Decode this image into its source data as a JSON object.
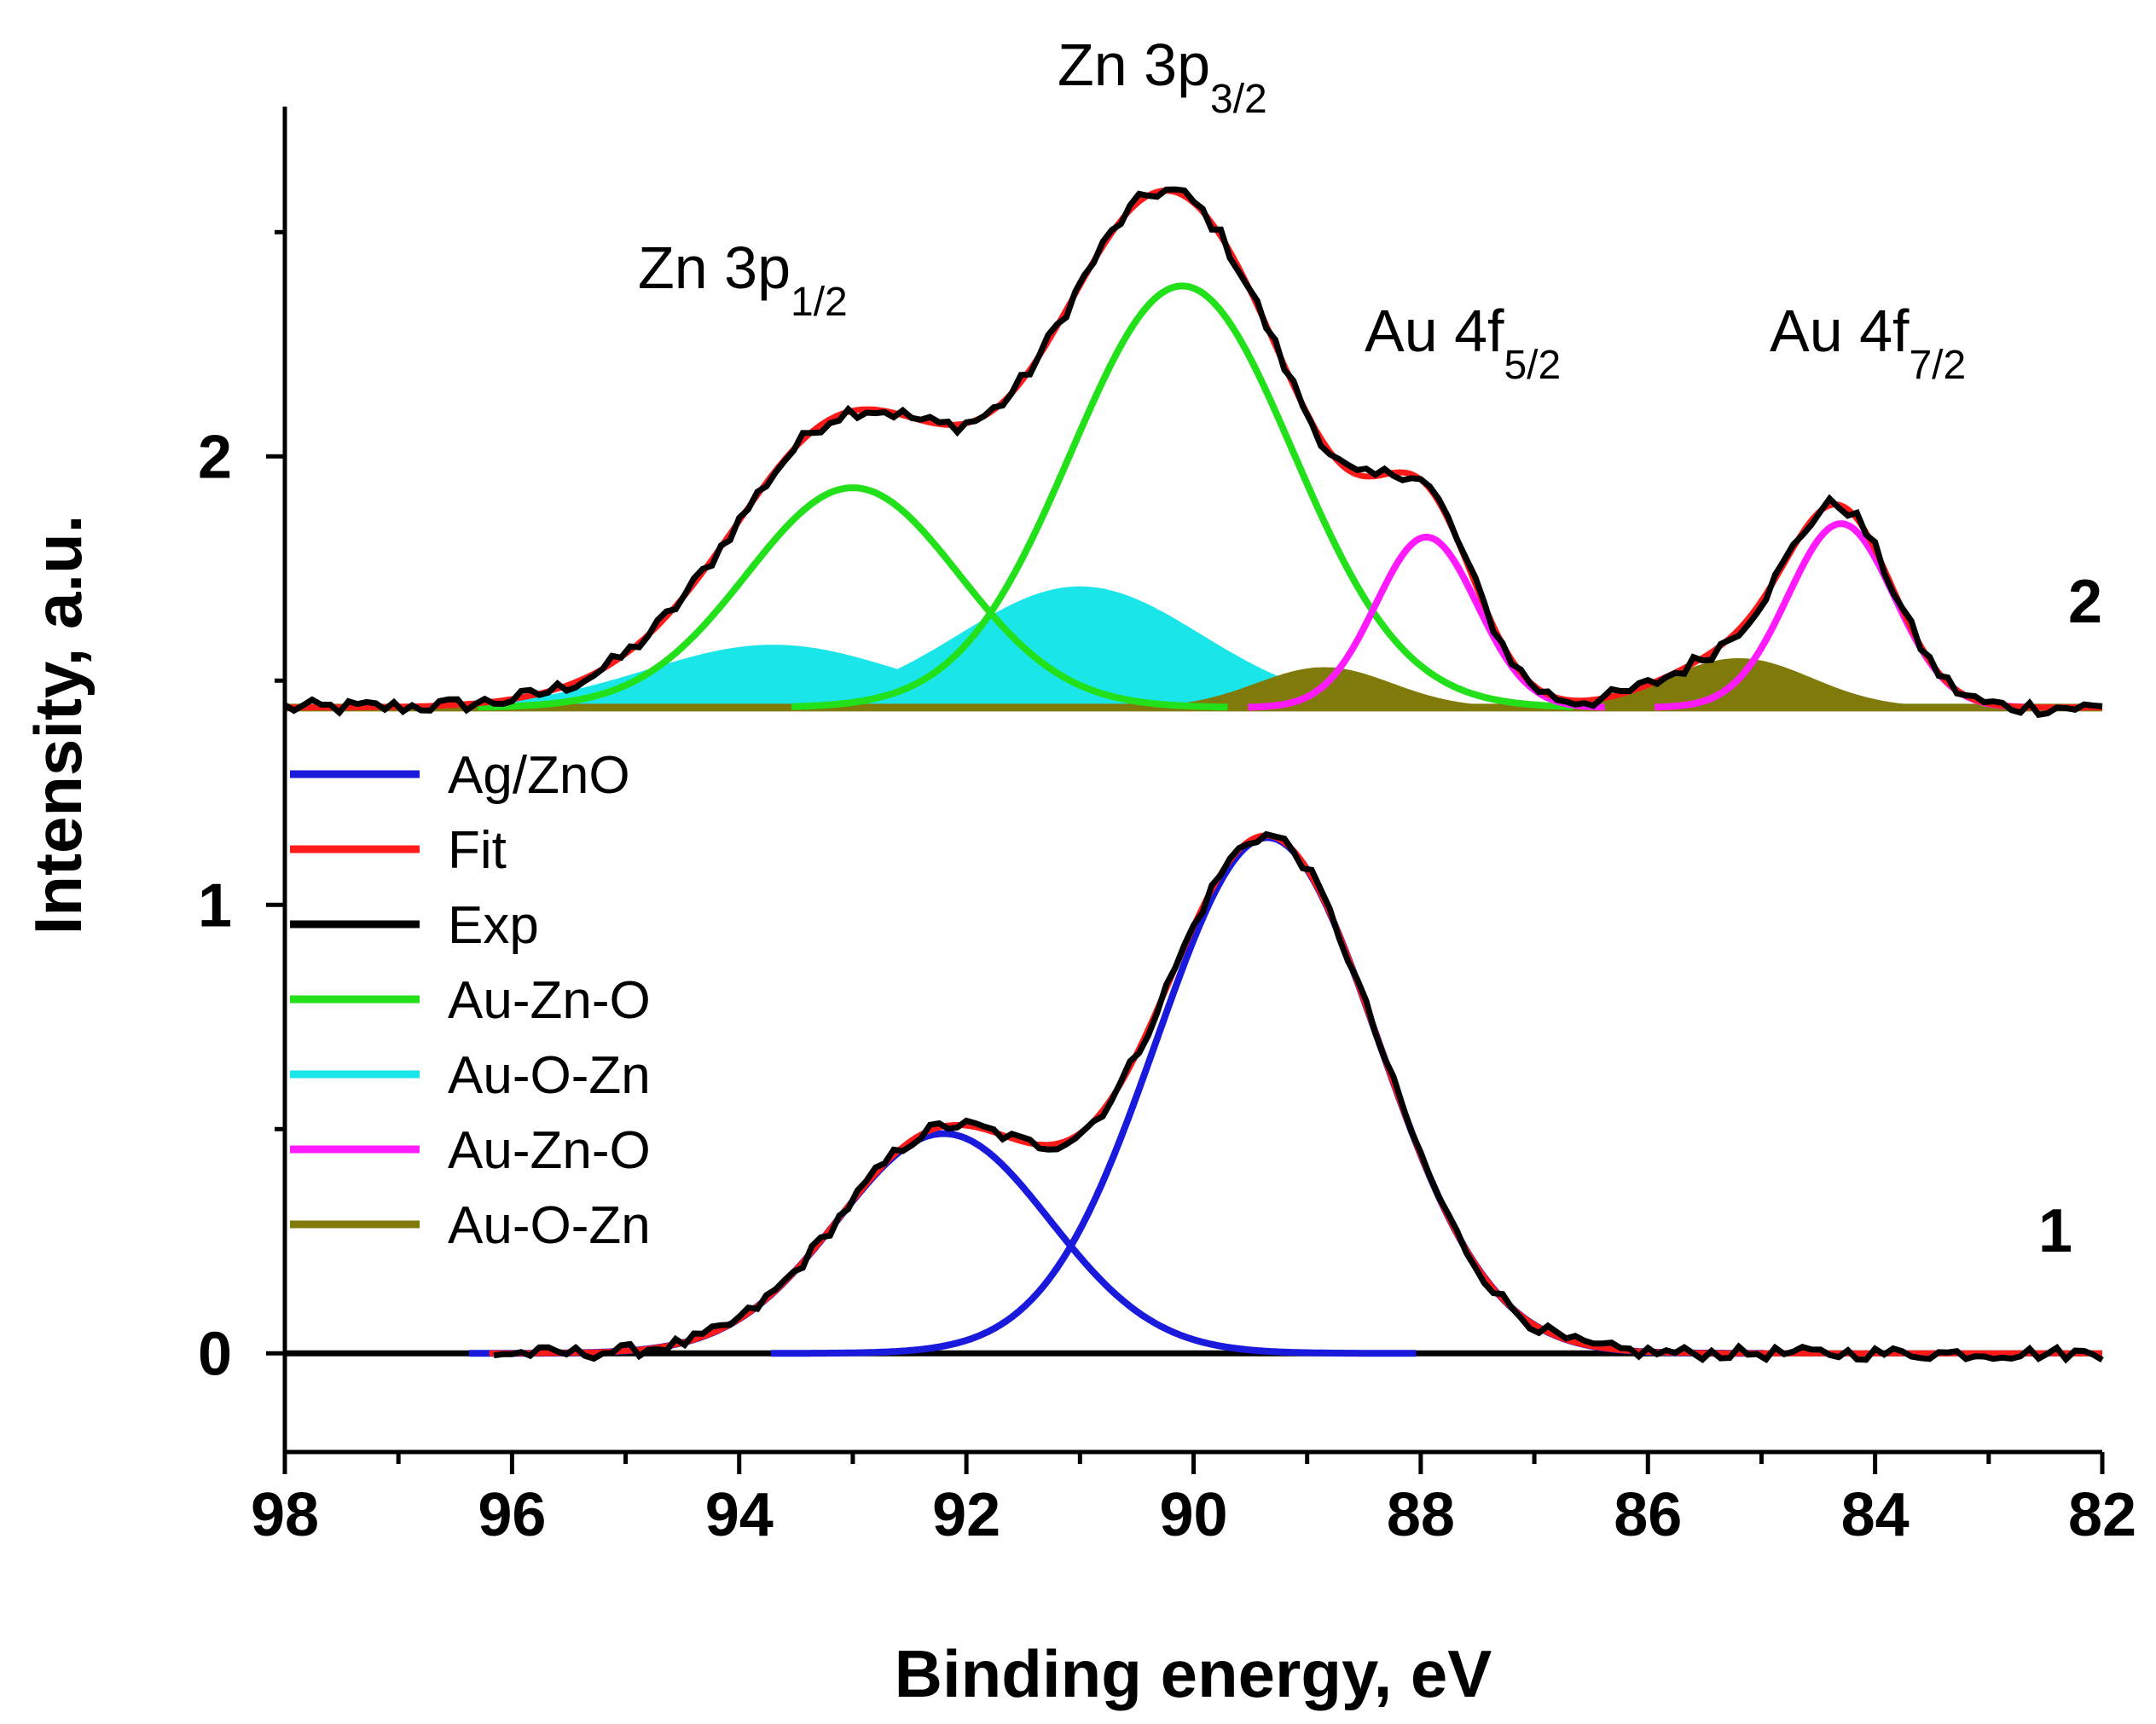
{
  "chart_data": {
    "type": "line",
    "title": "",
    "xlabel": "Binding energy, eV",
    "ylabel": "Intensity, a.u.",
    "xlim": [
      98,
      82
    ],
    "ylim": [
      -0.22,
      2.78
    ],
    "x_ticks": [
      "98",
      "96",
      "94",
      "92",
      "90",
      "88",
      "86",
      "84",
      "82"
    ],
    "y_ticks": [
      "0",
      "1",
      "2"
    ],
    "curve_labels": [
      {
        "text": "2",
        "offset": 1.44
      },
      {
        "text": "1",
        "offset": 0.0
      }
    ],
    "annotations": [
      {
        "main": "Zn 3p",
        "sub": "3/2",
        "x": 90.3
      },
      {
        "main": "Zn 3p",
        "sub": "1/2",
        "x": 93.0
      },
      {
        "main": "Au 4f",
        "sub": "5/2",
        "x": 87.5
      },
      {
        "main": "Au 4f",
        "sub": "7/2",
        "x": 84.0
      }
    ],
    "legend": {
      "position": "center-left",
      "entries": [
        {
          "label": "Ag/ZnO",
          "color": "#1a1adc"
        },
        {
          "label": "Fit",
          "color": "#ff1a1a"
        },
        {
          "label": "Exp",
          "color": "#000000"
        },
        {
          "label": "Au-Zn-O",
          "color": "#22e01a"
        },
        {
          "label": "Au-O-Zn",
          "color": "#1ae6ea"
        },
        {
          "label": "Au-Zn-O",
          "color": "#ff1aff"
        },
        {
          "label": "Au-O-Zn",
          "color": "#807a0a"
        }
      ]
    },
    "series": [
      {
        "name": "Ag/ZnO",
        "curve": "1",
        "color": "#1a1adc",
        "components": [
          {
            "center": 92.2,
            "amplitude": 0.49,
            "fwhm": 2.2
          },
          {
            "center": 89.35,
            "amplitude": 1.15,
            "fwhm": 2.3
          }
        ]
      },
      {
        "name": "Au-Zn-O (Zn 3p)",
        "curve": "2",
        "color": "#22e01a",
        "offset": 1.44,
        "components": [
          {
            "center": 93.0,
            "amplitude": 0.49,
            "fwhm": 2.2
          },
          {
            "center": 90.1,
            "amplitude": 0.94,
            "fwhm": 2.3
          }
        ]
      },
      {
        "name": "Au-O-Zn (Zn 3p)",
        "curve": "2",
        "color": "#1ae6ea",
        "offset": 1.44,
        "filled": true,
        "components": [
          {
            "center": 93.7,
            "amplitude": 0.14,
            "fwhm": 2.6
          },
          {
            "center": 91.0,
            "amplitude": 0.27,
            "fwhm": 2.5
          }
        ]
      },
      {
        "name": "Au-Zn-O (Au 4f)",
        "curve": "2",
        "color": "#ff1aff",
        "offset": 1.44,
        "components": [
          {
            "center": 87.95,
            "amplitude": 0.38,
            "fwhm": 1.05
          },
          {
            "center": 84.3,
            "amplitude": 0.41,
            "fwhm": 1.1
          }
        ]
      },
      {
        "name": "Au-O-Zn (Au 4f)",
        "curve": "2",
        "color": "#807a0a",
        "offset": 1.44,
        "filled": true,
        "components": [
          {
            "center": 88.85,
            "amplitude": 0.09,
            "fwhm": 1.4
          },
          {
            "center": 85.2,
            "amplitude": 0.11,
            "fwhm": 1.5
          }
        ]
      },
      {
        "name": "Fit",
        "color": "#ff1a1a",
        "description": "sum of components for each curve"
      },
      {
        "name": "Exp",
        "color": "#000000",
        "description": "experimental spectrum (noisy) for each curve"
      }
    ]
  }
}
